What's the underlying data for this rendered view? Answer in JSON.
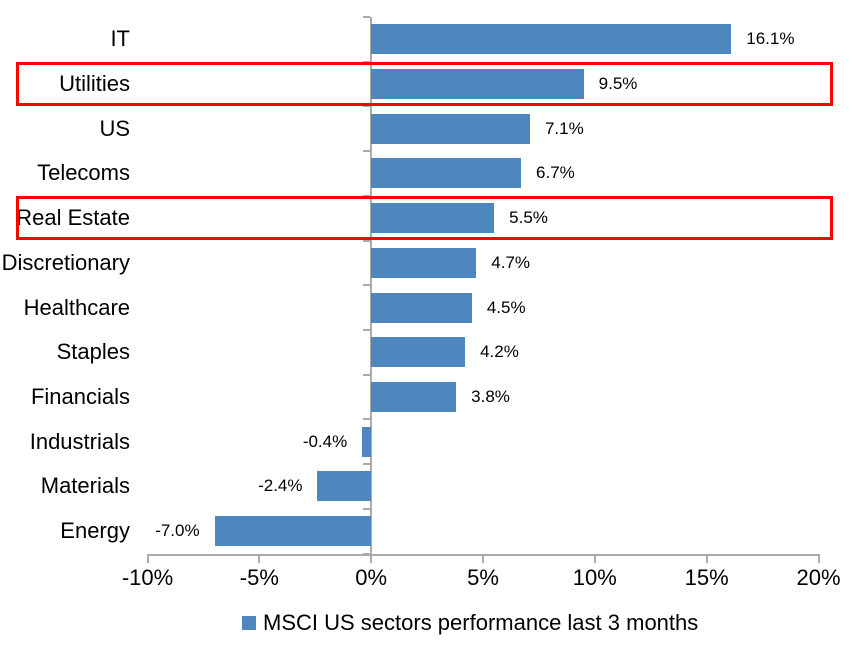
{
  "chart_data": {
    "type": "bar",
    "orientation": "horizontal",
    "title": "",
    "categories": [
      "IT",
      "Utilities",
      "US",
      "Telecoms",
      "Real Estate",
      "Discretionary",
      "Healthcare",
      "Staples",
      "Financials",
      "Industrials",
      "Materials",
      "Energy"
    ],
    "values": [
      16.1,
      9.5,
      7.1,
      6.7,
      5.5,
      4.7,
      4.5,
      4.2,
      3.8,
      -0.4,
      -2.4,
      -7.0
    ],
    "value_labels": [
      "16.1%",
      "9.5%",
      "7.1%",
      "6.7%",
      "5.5%",
      "4.7%",
      "4.5%",
      "4.2%",
      "3.8%",
      "-0.4%",
      "-2.4%",
      "-7.0%"
    ],
    "highlighted_categories": [
      "Utilities",
      "Real Estate"
    ],
    "x_axis": {
      "min": -10,
      "max": 20,
      "tick_step": 5,
      "ticks": [
        -10,
        -5,
        0,
        5,
        10,
        15,
        20
      ],
      "tick_labels": [
        "-10%",
        "-5%",
        "0%",
        "5%",
        "10%",
        "15%",
        "20%"
      ]
    },
    "grid": false,
    "legend": {
      "position": "bottom",
      "label": "MSCI US sectors performance last 3 months"
    },
    "colors": {
      "bar": "#4E86BE",
      "highlight_box": "#FF0000",
      "axis": "#ABABAB",
      "text": "#000000",
      "background": "#FFFFFF"
    }
  }
}
